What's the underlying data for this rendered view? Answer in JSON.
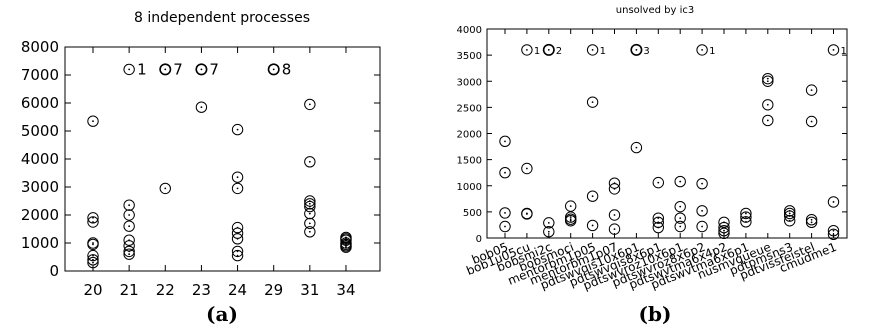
{
  "chart_data": [
    {
      "type": "scatter",
      "title": "8 independent processes",
      "caption": "(a)",
      "categories": [
        "20",
        "21",
        "22",
        "23",
        "24",
        "29",
        "31",
        "34"
      ],
      "ylim": [
        0,
        8000
      ],
      "yticks": [
        0,
        1000,
        2000,
        3000,
        4000,
        5000,
        6000,
        7000,
        8000
      ],
      "grid": false,
      "series": [
        {
          "values": [
            [
              20,
              5350
            ],
            [
              20,
              1900
            ],
            [
              20,
              1750
            ],
            [
              20,
              1000
            ],
            [
              20,
              950
            ],
            [
              20,
              550
            ],
            [
              20,
              400
            ],
            [
              20,
              300
            ],
            [
              21,
              2350
            ],
            [
              21,
              2000
            ],
            [
              21,
              1600
            ],
            [
              21,
              1100
            ],
            [
              21,
              900
            ],
            [
              21,
              700
            ],
            [
              21,
              600
            ],
            [
              22,
              2950
            ],
            [
              23,
              5850
            ],
            [
              24,
              5050
            ],
            [
              24,
              3350
            ],
            [
              24,
              2950
            ],
            [
              24,
              1550
            ],
            [
              24,
              1350
            ],
            [
              24,
              1150
            ],
            [
              24,
              700
            ],
            [
              24,
              550
            ],
            [
              31,
              5950
            ],
            [
              31,
              3900
            ],
            [
              31,
              2500
            ],
            [
              31,
              2400
            ],
            [
              31,
              2300
            ],
            [
              31,
              2050
            ],
            [
              31,
              1700
            ],
            [
              31,
              1400
            ],
            [
              34,
              1200
            ],
            [
              34,
              1150
            ],
            [
              34,
              1100
            ],
            [
              34,
              1000
            ],
            [
              34,
              950
            ],
            [
              34,
              900
            ],
            [
              34,
              850
            ]
          ]
        }
      ],
      "timeouts": [
        {
          "category": "21",
          "y": 7200,
          "count": "1"
        },
        {
          "category": "22",
          "y": 7200,
          "count": "7"
        },
        {
          "category": "23",
          "y": 7200,
          "count": "7"
        },
        {
          "category": "29",
          "y": 7200,
          "count": "8"
        }
      ]
    },
    {
      "type": "scatter",
      "title": "unsolved by ic3",
      "caption": "(b)",
      "categories": [
        "bob05",
        "bob1u05cu",
        "bobsmi2c",
        "bobsmoci",
        "mentorbm1p05",
        "mentorbm1p07",
        "pdtswvqis10x6p1",
        "pdtswvqis8x6p1",
        "pdtswvroz10x6p1",
        "pdtswvroz8x6p2",
        "pdtswvtma6x4p2",
        "pdtswvtma6x6p1",
        "nusmvqueue",
        "pdtpmsns3",
        "pdtvissfeistel",
        "cmudme1"
      ],
      "ylim": [
        0,
        4000
      ],
      "yticks": [
        0,
        500,
        1000,
        1500,
        2000,
        2500,
        3000,
        3500,
        4000
      ],
      "grid": false,
      "series": [
        {
          "values": [
            [
              0,
              1850
            ],
            [
              0,
              1250
            ],
            [
              0,
              480
            ],
            [
              0,
              220
            ],
            [
              1,
              1330
            ],
            [
              1,
              470
            ],
            [
              1,
              460
            ],
            [
              2,
              290
            ],
            [
              2,
              120
            ],
            [
              3,
              610
            ],
            [
              3,
              400
            ],
            [
              3,
              360
            ],
            [
              3,
              330
            ],
            [
              4,
              2600
            ],
            [
              4,
              800
            ],
            [
              4,
              240
            ],
            [
              5,
              1050
            ],
            [
              5,
              940
            ],
            [
              5,
              440
            ],
            [
              5,
              170
            ],
            [
              6,
              1730
            ],
            [
              7,
              1060
            ],
            [
              7,
              380
            ],
            [
              7,
              300
            ],
            [
              7,
              200
            ],
            [
              8,
              1080
            ],
            [
              8,
              600
            ],
            [
              8,
              380
            ],
            [
              8,
              220
            ],
            [
              9,
              1040
            ],
            [
              9,
              520
            ],
            [
              9,
              220
            ],
            [
              10,
              300
            ],
            [
              10,
              200
            ],
            [
              10,
              140
            ],
            [
              10,
              90
            ],
            [
              11,
              470
            ],
            [
              11,
              400
            ],
            [
              11,
              310
            ],
            [
              12,
              3050
            ],
            [
              12,
              3000
            ],
            [
              12,
              2550
            ],
            [
              12,
              2250
            ],
            [
              13,
              520
            ],
            [
              13,
              470
            ],
            [
              13,
              420
            ],
            [
              13,
              330
            ],
            [
              14,
              2830
            ],
            [
              14,
              2230
            ],
            [
              14,
              350
            ],
            [
              14,
              300
            ],
            [
              15,
              690
            ],
            [
              15,
              140
            ],
            [
              15,
              70
            ]
          ]
        }
      ],
      "timeouts": [
        {
          "category": "bob1u05cu",
          "y": 3600,
          "count": "1"
        },
        {
          "category": "bobsmi2c",
          "y": 3600,
          "count": "2"
        },
        {
          "category": "mentorbm1p05",
          "y": 3600,
          "count": "1"
        },
        {
          "category": "pdtswvqis10x6p1",
          "y": 3600,
          "count": "3"
        },
        {
          "category": "pdtswvroz8x6p2",
          "y": 3600,
          "count": "1"
        },
        {
          "category": "cmudme1",
          "y": 3600,
          "count": "1"
        }
      ]
    }
  ]
}
